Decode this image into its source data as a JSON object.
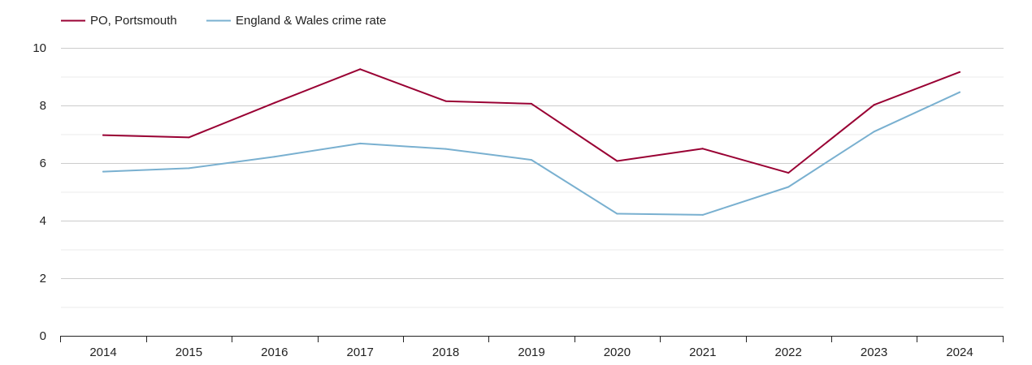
{
  "chart_data": {
    "type": "line",
    "x": [
      "2014",
      "2015",
      "2016",
      "2017",
      "2018",
      "2019",
      "2020",
      "2021",
      "2022",
      "2023",
      "2024"
    ],
    "ylim": [
      0,
      10
    ],
    "y_ticks": [
      "0",
      "2",
      "4",
      "6",
      "8",
      "10"
    ],
    "y_minor_ticks": [
      1,
      3,
      5,
      7,
      9
    ],
    "grid": true,
    "legend_position": "top-left",
    "series": [
      {
        "name": "PO, Portsmouth",
        "color": "#990033",
        "values": [
          6.97,
          6.89,
          8.09,
          9.26,
          8.15,
          8.06,
          6.07,
          6.5,
          5.66,
          8.02,
          9.16
        ]
      },
      {
        "name": "England & Wales crime rate",
        "color": "#79b0d0",
        "values": [
          5.7,
          5.82,
          6.22,
          6.68,
          6.49,
          6.11,
          4.24,
          4.2,
          5.17,
          7.09,
          8.46
        ]
      }
    ]
  }
}
